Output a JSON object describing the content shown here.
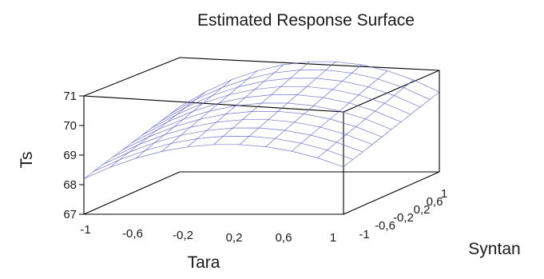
{
  "chart_data": {
    "type": "surface",
    "title": "Estimated Response Surface",
    "xlabel": "Tara",
    "ylabel": "Syntan",
    "zlabel": "Ts",
    "x_ticks": [
      "-1",
      "-0,6",
      "-0,2",
      "0,2",
      "0,6",
      "1"
    ],
    "y_ticks": [
      "-1",
      "-0,6",
      "-0,2",
      "0,2",
      "0,6",
      "1"
    ],
    "z_ticks": [
      "67",
      "68",
      "69",
      "70",
      "71"
    ],
    "xlim": [
      -1,
      1
    ],
    "ylim": [
      -1,
      1
    ],
    "zlim": [
      67,
      71
    ],
    "mesh_color": "#5a62c8",
    "surface": {
      "x": [
        -1,
        -0.8,
        -0.6,
        -0.4,
        -0.2,
        0,
        0.2,
        0.4,
        0.6,
        0.8,
        1
      ],
      "y": [
        -1,
        -0.8,
        -0.6,
        -0.4,
        -0.2,
        0,
        0.2,
        0.4,
        0.6,
        0.8,
        1
      ],
      "z_at_corners": {
        "x_-1_y_-1": 68.2,
        "x_1_y_-1": 68.6,
        "x_-1_y_1": 69.2,
        "x_1_y_1": 69.7
      },
      "z_max": 70.2
    }
  }
}
